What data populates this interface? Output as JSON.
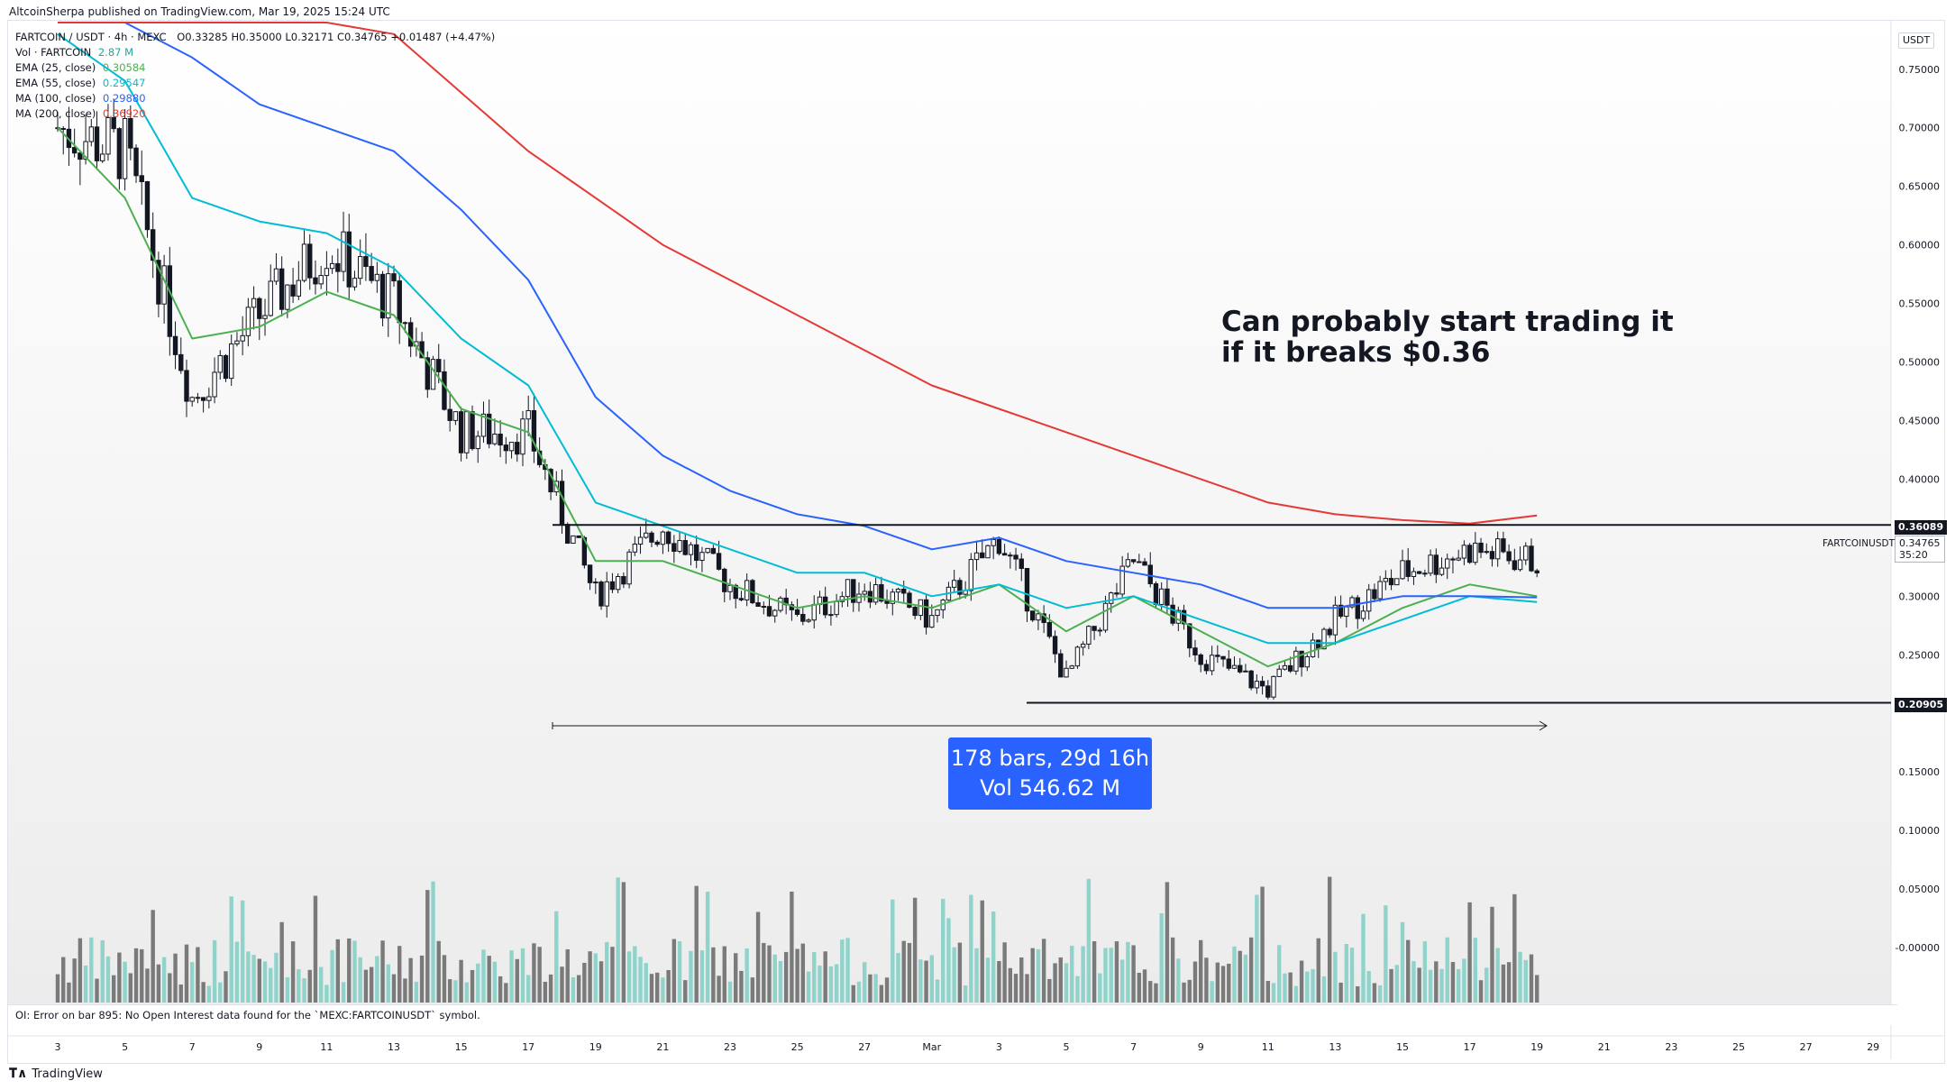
{
  "header": {
    "published": "AltcoinSherpa published on TradingView.com, Mar 19, 2025 15:24 UTC"
  },
  "legend": {
    "symbol_line": "FARTCOIN / USDT · 4h · MEXC",
    "ohlc": "O0.33285  H0.35000  L0.32171  C0.34765  +0.01487 (+4.47%)",
    "vol": {
      "label": "Vol · FARTCOIN",
      "value": "2.87 M"
    },
    "ema25": {
      "label": "EMA (25, close)",
      "value": "0.30584",
      "color": "#4caf50"
    },
    "ema55": {
      "label": "EMA (55, close)",
      "value": "0.29547",
      "color": "#00bcd4"
    },
    "ma100": {
      "label": "MA (100, close)",
      "value": "0.29880",
      "color": "#2962ff"
    },
    "ma200": {
      "label": "MA (200, close)",
      "value": "0.36920",
      "color": "#e53935"
    }
  },
  "callout": {
    "line1": "Can probably start trading it",
    "line2": "if it breaks $0.36"
  },
  "measure": {
    "line1": "178 bars, 29d 16h",
    "line2": "Vol 546.62 M"
  },
  "status_error": "OI: Error on bar 895: No Open Interest data found for the `MEXC:FARTCOINUSDT` symbol.",
  "brand": {
    "icon": "tradingview-logo-icon",
    "name": "TradingView"
  },
  "price_axis": {
    "currency": "USDT",
    "labels": [
      "0.75000",
      "0.70000",
      "0.65000",
      "0.60000",
      "0.55000",
      "0.50000",
      "0.45000",
      "0.40000",
      "0.30000",
      "0.25000",
      "0.15000",
      "0.10000",
      "0.05000",
      "-0.00000"
    ],
    "resistance_tag": "0.36089",
    "support_tag": "0.20905",
    "last_price": "0.34765",
    "countdown": "35:20",
    "symbol_tag": "FARTCOINUSDT"
  },
  "time_axis": {
    "labels": [
      "3",
      "5",
      "7",
      "9",
      "11",
      "13",
      "15",
      "17",
      "19",
      "21",
      "23",
      "25",
      "27",
      "Mar",
      "3",
      "5",
      "7",
      "9",
      "11",
      "13",
      "15",
      "17",
      "19",
      "21",
      "23",
      "25",
      "27",
      "29"
    ]
  },
  "chart_data": {
    "type": "candlestick",
    "title": "FARTCOIN / USDT · 4h · MEXC",
    "y_range": [
      -0.05,
      0.76
    ],
    "horizontal_levels": [
      {
        "name": "resistance",
        "value": 0.36089
      },
      {
        "name": "support",
        "value": 0.20905
      }
    ],
    "x_daily": [
      "Feb 3",
      "Feb 5",
      "Feb 7",
      "Feb 9",
      "Feb 11",
      "Feb 13",
      "Feb 15",
      "Feb 17",
      "Feb 19",
      "Feb 21",
      "Feb 23",
      "Feb 25",
      "Feb 27",
      "Mar 1",
      "Mar 3",
      "Mar 5",
      "Mar 7",
      "Mar 9",
      "Mar 11",
      "Mar 13",
      "Mar 15",
      "Mar 17",
      "Mar 19"
    ],
    "price_close_approx": [
      0.7,
      0.68,
      0.47,
      0.54,
      0.6,
      0.55,
      0.44,
      0.44,
      0.3,
      0.36,
      0.31,
      0.28,
      0.31,
      0.28,
      0.35,
      0.23,
      0.33,
      0.25,
      0.22,
      0.28,
      0.32,
      0.34,
      0.33
    ],
    "series": [
      {
        "name": "EMA (25, close)",
        "color": "#4caf50",
        "values": [
          0.7,
          0.64,
          0.52,
          0.53,
          0.56,
          0.54,
          0.46,
          0.44,
          0.33,
          0.33,
          0.31,
          0.29,
          0.3,
          0.29,
          0.31,
          0.27,
          0.3,
          0.27,
          0.24,
          0.26,
          0.29,
          0.31,
          0.3
        ]
      },
      {
        "name": "EMA (55, close)",
        "color": "#00bcd4",
        "values": [
          0.78,
          0.74,
          0.64,
          0.62,
          0.61,
          0.58,
          0.52,
          0.48,
          0.38,
          0.36,
          0.34,
          0.32,
          0.32,
          0.3,
          0.31,
          0.29,
          0.3,
          0.28,
          0.26,
          0.26,
          0.28,
          0.3,
          0.295
        ]
      },
      {
        "name": "MA (100, close)",
        "color": "#2962ff",
        "values": [
          0.8,
          0.8,
          0.76,
          0.72,
          0.7,
          0.68,
          0.63,
          0.57,
          0.47,
          0.42,
          0.39,
          0.37,
          0.36,
          0.34,
          0.35,
          0.33,
          0.32,
          0.31,
          0.29,
          0.29,
          0.3,
          0.3,
          0.299
        ]
      },
      {
        "name": "MA (200, close)",
        "color": "#e53935",
        "values": [
          0.79,
          0.79,
          0.79,
          0.79,
          0.79,
          0.78,
          0.73,
          0.68,
          0.64,
          0.6,
          0.57,
          0.54,
          0.51,
          0.48,
          0.46,
          0.44,
          0.42,
          0.4,
          0.38,
          0.37,
          0.365,
          0.362,
          0.369
        ]
      }
    ]
  }
}
